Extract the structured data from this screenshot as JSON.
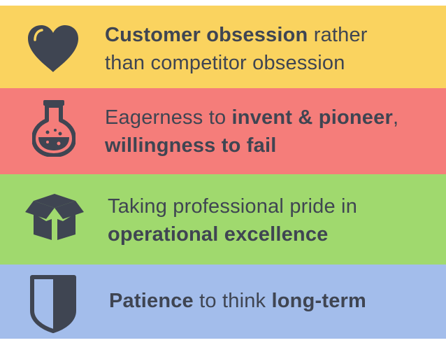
{
  "colors": {
    "icon": "#3f4552",
    "text": "#3f4552"
  },
  "values": [
    {
      "id": "customer-obsession",
      "icon": "heart-icon",
      "color": "#fad35f",
      "lines": [
        [
          {
            "text": "Customer obsession",
            "bold": true
          },
          {
            "text": " rather",
            "bold": false
          }
        ],
        [
          {
            "text": "than competitor obsession",
            "bold": false
          }
        ]
      ]
    },
    {
      "id": "invent-pioneer",
      "icon": "flask-icon",
      "color": "#f57d7a",
      "lines": [
        [
          {
            "text": "Eagerness to ",
            "bold": false
          },
          {
            "text": "invent & pioneer",
            "bold": true
          },
          {
            "text": ",",
            "bold": false
          }
        ],
        [
          {
            "text": "willingness to fail",
            "bold": true
          }
        ]
      ]
    },
    {
      "id": "operational-excellence",
      "icon": "box-icon",
      "color": "#a0d96e",
      "lines": [
        [
          {
            "text": "Taking professional pride in",
            "bold": false
          }
        ],
        [
          {
            "text": "operational excellence",
            "bold": true
          }
        ]
      ]
    },
    {
      "id": "long-term",
      "icon": "shield-icon",
      "color": "#a3bdeb",
      "lines": [
        [
          {
            "text": "Patience",
            "bold": true
          },
          {
            "text": " to think ",
            "bold": false
          },
          {
            "text": "long-term",
            "bold": true
          }
        ]
      ]
    }
  ]
}
